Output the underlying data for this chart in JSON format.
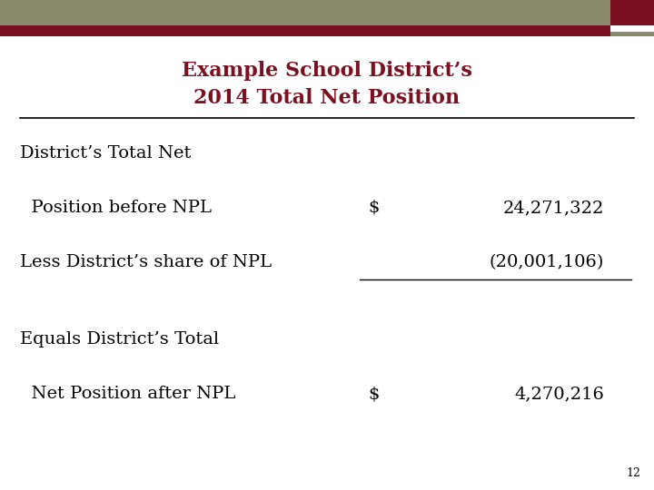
{
  "title_line1": "Example School District’s",
  "title_line2": "2014 Total Net Position",
  "title_color": "#7B1020",
  "title_fontsize": 16,
  "body_fontsize": 14,
  "header_bar_olive": "#8B8B6B",
  "header_bar_red": "#7B1020",
  "bg_color": "#FFFFFF",
  "line_color": "#000000",
  "rows": [
    {
      "label": "District’s Total Net",
      "dollar": "",
      "value": "",
      "underline": false
    },
    {
      "label": "  Position before NPL",
      "dollar": "$",
      "value": "24,271,322",
      "underline": false
    },
    {
      "label": "Less District’s share of NPL",
      "dollar": "",
      "value": "(20,001,106)",
      "underline": true
    },
    {
      "label": "",
      "dollar": "",
      "value": "",
      "underline": false
    },
    {
      "label": "Equals District’s Total",
      "dollar": "",
      "value": "",
      "underline": false
    },
    {
      "label": "  Net Position after NPL",
      "dollar": "$",
      "value": "4,270,216",
      "underline": false
    }
  ],
  "page_number": "12",
  "page_num_fontsize": 9,
  "fig_width": 7.2,
  "fig_height": 5.4,
  "dpi": 100
}
